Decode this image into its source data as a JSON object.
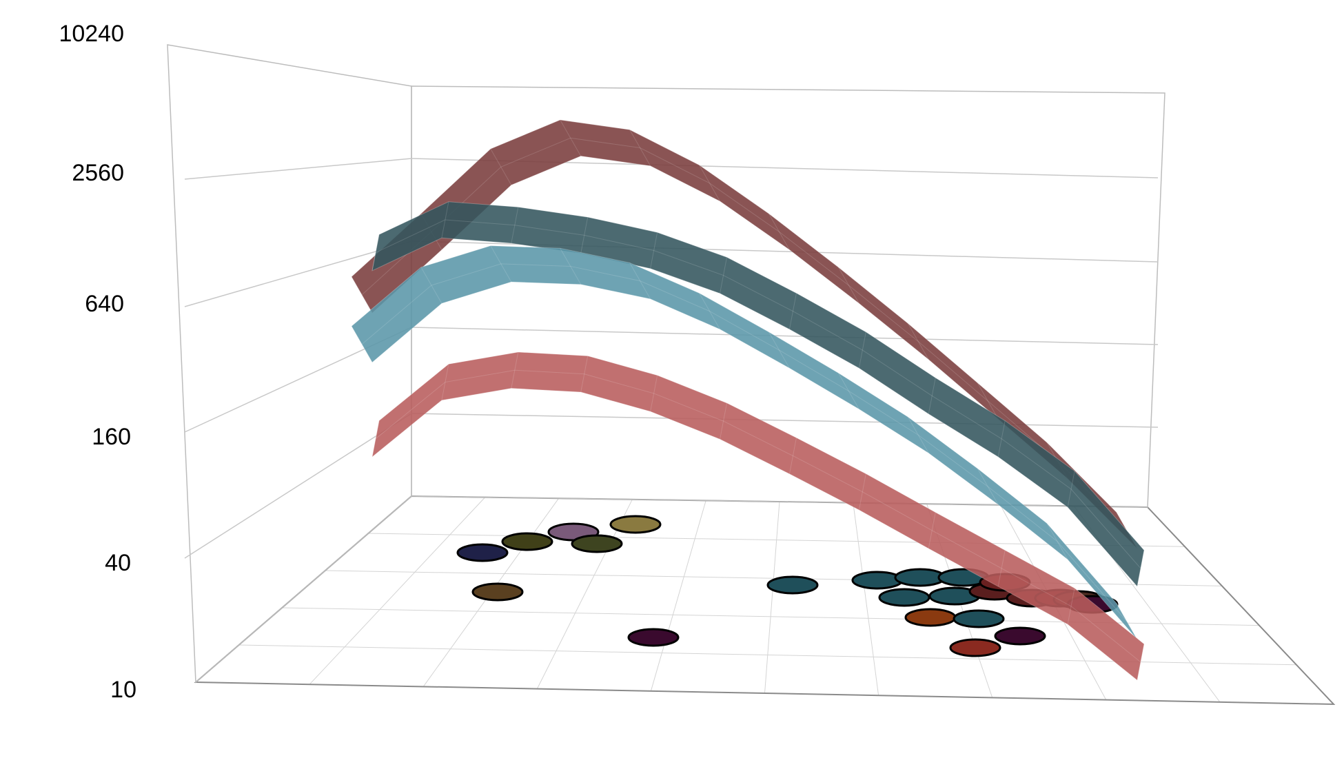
{
  "chart_data": {
    "type": "3d-surface-scatter",
    "title": "",
    "xlabel": "",
    "ylabel": "",
    "zlabel": "",
    "z_scale": "log",
    "z_ticks": [
      "10",
      "40",
      "160",
      "640",
      "2560",
      "10240"
    ],
    "z_range": [
      10,
      10240
    ],
    "grid": true,
    "legend": "none",
    "surfaces": [
      {
        "color": "#7a3c3c",
        "opacity": 0.88,
        "z_front": [
          560,
          1100,
          2200,
          3000,
          2700,
          1850,
          1100,
          620,
          340,
          180,
          95,
          45
        ]
      },
      {
        "color": "#33555d",
        "opacity": 0.88,
        "z_front": [
          880,
          1250,
          1180,
          1060,
          900,
          690,
          470,
          310,
          190,
          120,
          70,
          30
        ]
      },
      {
        "color": "#5a96a8",
        "opacity": 0.88,
        "z_front": [
          330,
          620,
          780,
          760,
          650,
          470,
          310,
          200,
          125,
          72,
          40,
          17
        ]
      },
      {
        "color": "#b85c5c",
        "opacity": 0.88,
        "z_front": [
          120,
          220,
          250,
          240,
          195,
          145,
          100,
          68,
          45,
          30,
          20,
          11
        ]
      }
    ],
    "points": [
      {
        "color": "#1f2148"
      },
      {
        "color": "#5a4020"
      },
      {
        "color": "#404018"
      },
      {
        "color": "#7a5a7a"
      },
      {
        "color": "#3e4420"
      },
      {
        "color": "#8a7a40"
      },
      {
        "color": "#3a0a2e"
      },
      {
        "color": "#1f4f5a"
      },
      {
        "color": "#1f4f5a"
      },
      {
        "color": "#1f4f5a"
      },
      {
        "color": "#1f4f5a"
      },
      {
        "color": "#1f4f5a"
      },
      {
        "color": "#1f4f5a"
      },
      {
        "color": "#8a3a10"
      },
      {
        "color": "#1f4f5a"
      },
      {
        "color": "#8a2a20"
      },
      {
        "color": "#3a0a2e"
      },
      {
        "color": "#5a1e1e"
      },
      {
        "color": "#6a2020"
      },
      {
        "color": "#5a1e1e"
      },
      {
        "color": "#5a1e1e"
      },
      {
        "color": "#4a2a20"
      },
      {
        "color": "#3a0a2e"
      }
    ]
  }
}
